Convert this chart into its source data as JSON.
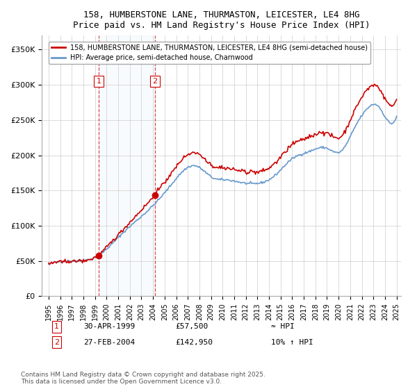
{
  "title": "158, HUMBERSTONE LANE, THURMASTON, LEICESTER, LE4 8HG",
  "subtitle": "Price paid vs. HM Land Registry's House Price Index (HPI)",
  "sale1_date": "1999-04-30",
  "sale1_label": "30-APR-1999",
  "sale1_price": 57500,
  "sale1_note": "≈ HPI",
  "sale2_date": "2004-02-27",
  "sale2_label": "27-FEB-2004",
  "sale2_price": 142950,
  "sale2_note": "10% ↑ HPI",
  "legend1": "158, HUMBERSTONE LANE, THURMASTON, LEICESTER, LE4 8HG (semi-detached house)",
  "legend2": "HPI: Average price, semi-detached house, Charnwood",
  "footer": "Contains HM Land Registry data © Crown copyright and database right 2025.\nThis data is licensed under the Open Government Licence v3.0.",
  "sale_color": "#cc0000",
  "hpi_color": "#6699cc",
  "marker_label_color": "#cc0000",
  "background_color": "#ffffff",
  "grid_color": "#cccccc",
  "ylim_min": 0,
  "ylim_max": 370000
}
